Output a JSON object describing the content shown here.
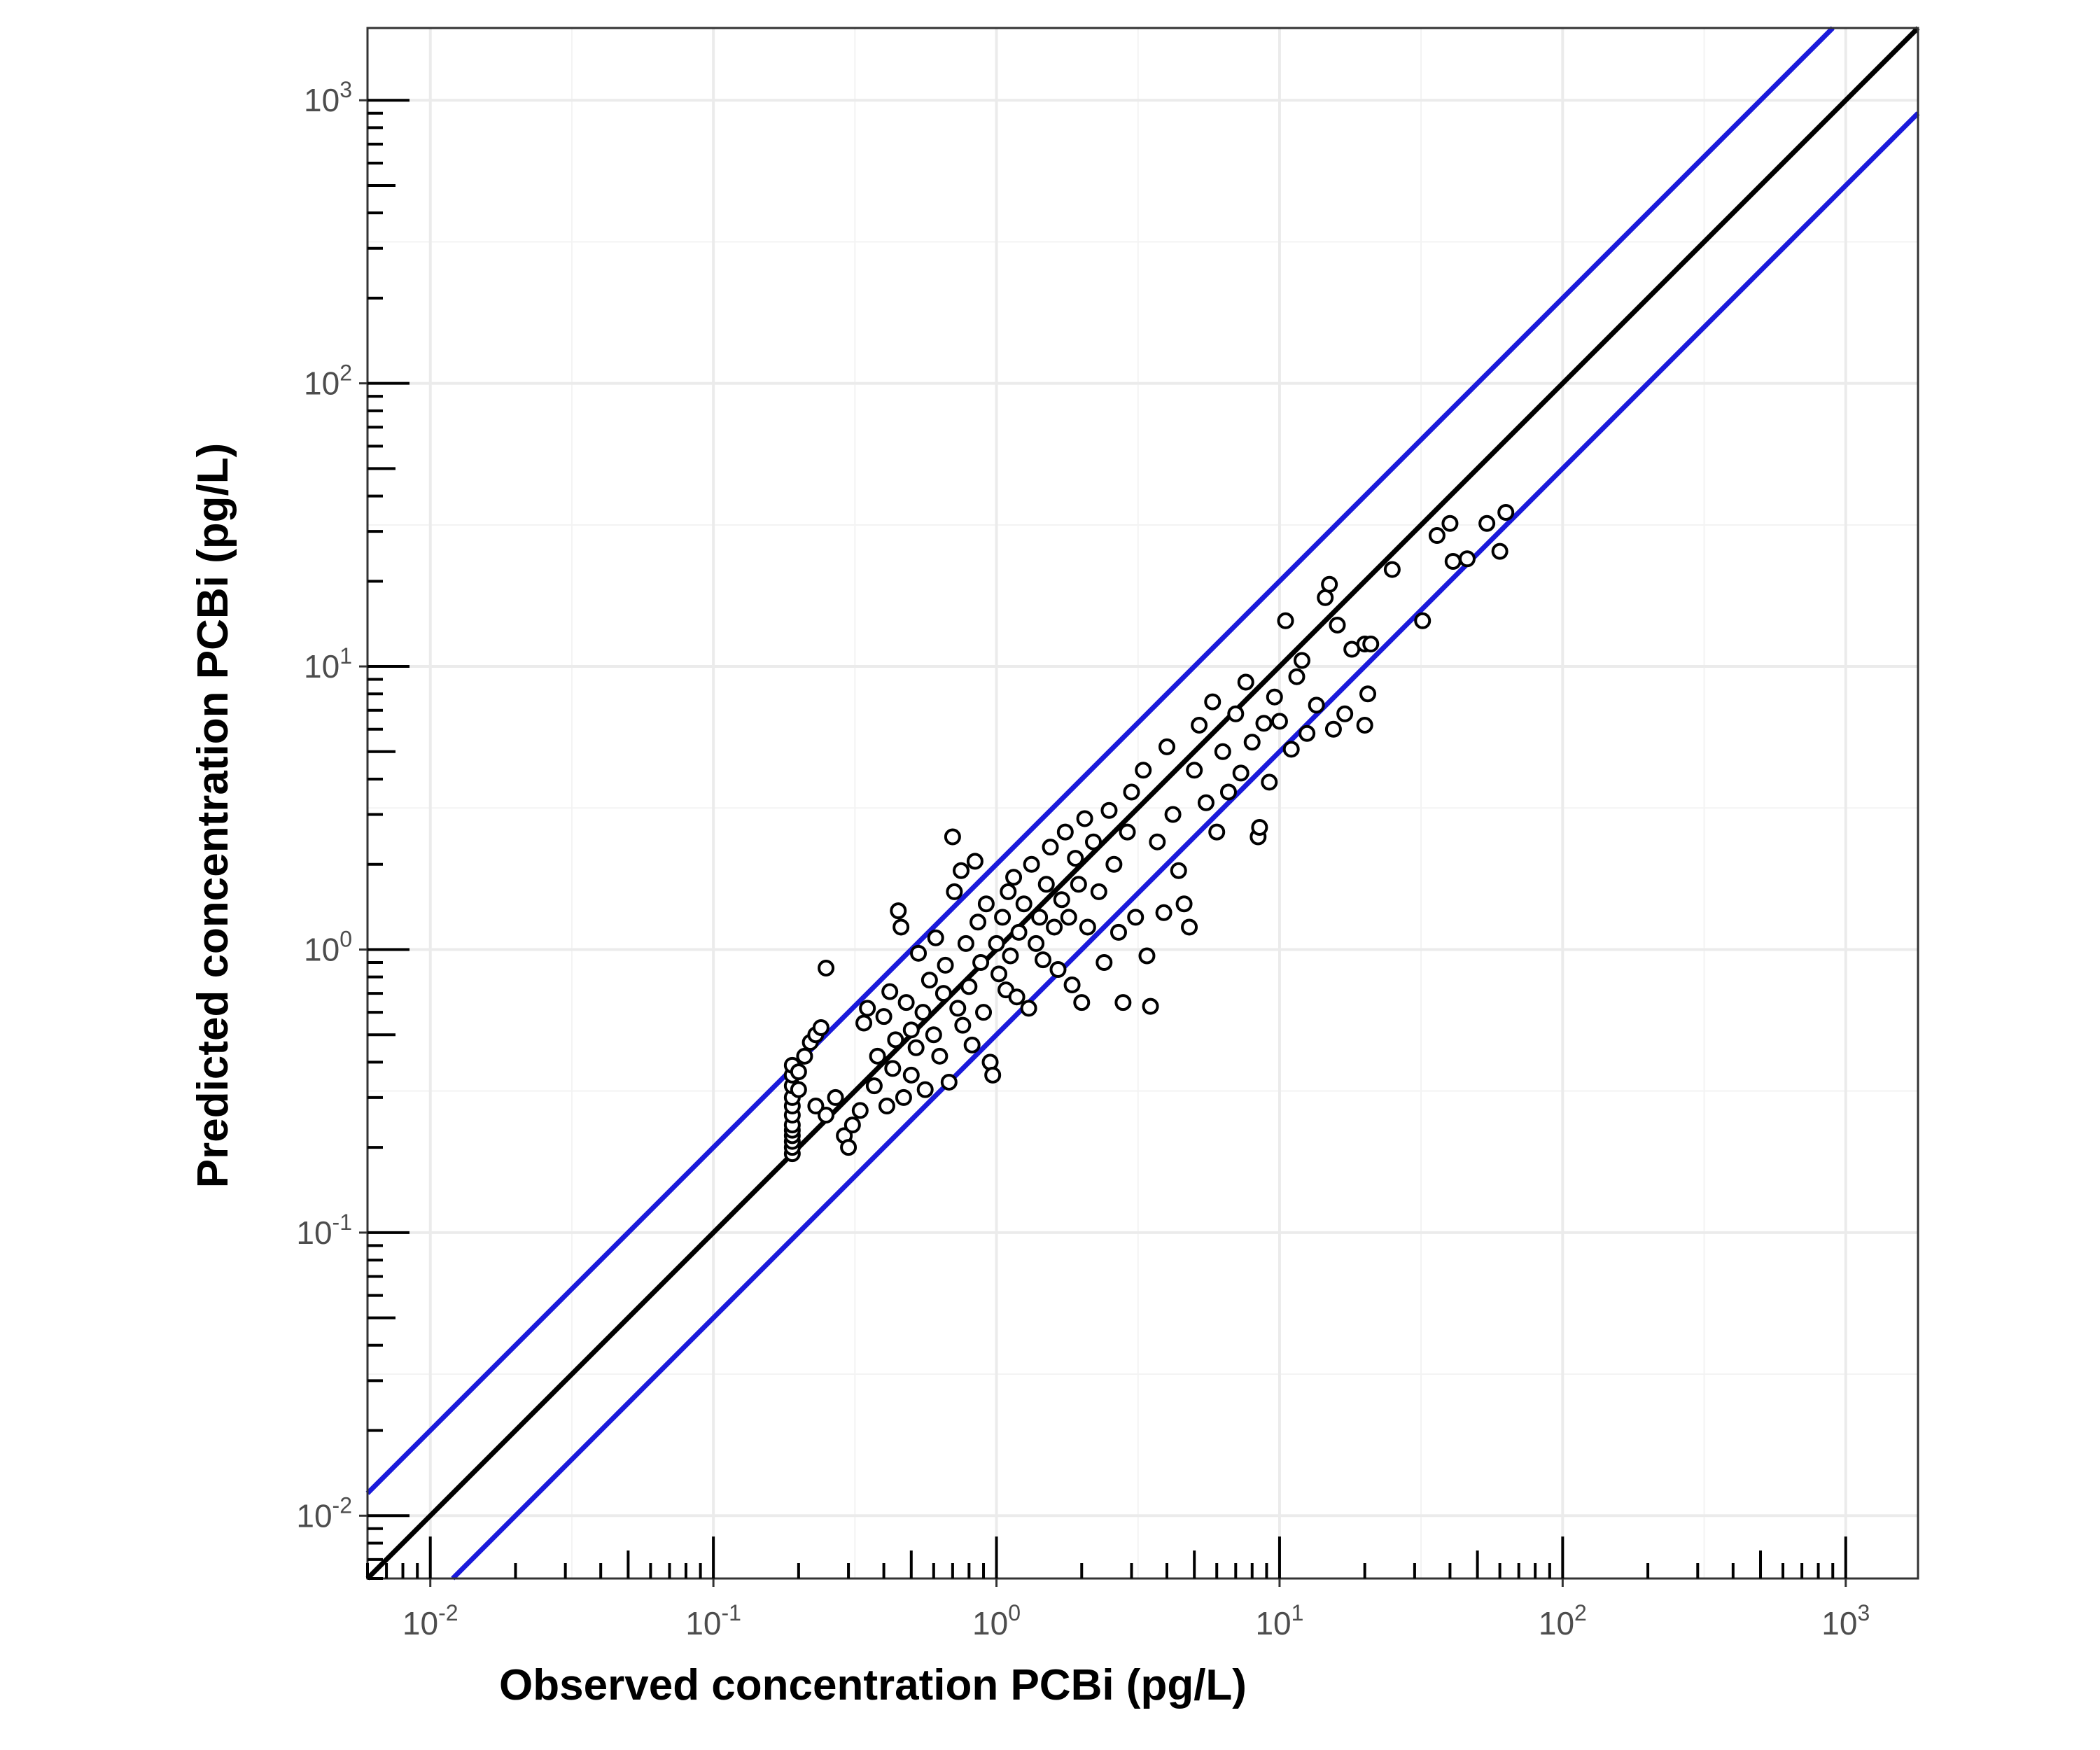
{
  "chart_data": {
    "type": "scatter",
    "title": "",
    "xlabel": "Observed concentration PCBi (pg/L)",
    "ylabel": "Predicted concentration PCBi (pg/L)",
    "xscale": "log10",
    "yscale": "log10",
    "xlim": [
      0.006,
      1800
    ],
    "ylim": [
      0.006,
      1800
    ],
    "x_ticks": [
      0.01,
      0.1,
      1,
      10,
      100,
      1000
    ],
    "y_ticks": [
      0.01,
      0.1,
      1,
      10,
      100,
      1000
    ],
    "x_tick_labels": [
      {
        "base": "10",
        "exp": "-2"
      },
      {
        "base": "10",
        "exp": "-1"
      },
      {
        "base": "10",
        "exp": "0"
      },
      {
        "base": "10",
        "exp": "1"
      },
      {
        "base": "10",
        "exp": "2"
      },
      {
        "base": "10",
        "exp": "3"
      }
    ],
    "y_tick_labels": [
      {
        "base": "10",
        "exp": "-2"
      },
      {
        "base": "10",
        "exp": "-1"
      },
      {
        "base": "10",
        "exp": "0"
      },
      {
        "base": "10",
        "exp": "1"
      },
      {
        "base": "10",
        "exp": "2"
      },
      {
        "base": "10",
        "exp": "3"
      }
    ],
    "grid": true,
    "legend": "none",
    "lines": [
      {
        "kind": "reference",
        "factor": 1,
        "color": "#000000"
      },
      {
        "kind": "reference",
        "factor": 2,
        "color": "#1a1adb"
      },
      {
        "kind": "reference",
        "factor": 0.5,
        "color": "#1a1adb"
      }
    ],
    "point_style": {
      "marker": "open-circle",
      "edge_color": "#000000",
      "fill_color": "#ffffff"
    },
    "points": [
      [
        0.19,
        0.19
      ],
      [
        0.19,
        0.2
      ],
      [
        0.19,
        0.21
      ],
      [
        0.19,
        0.22
      ],
      [
        0.19,
        0.23
      ],
      [
        0.19,
        0.24
      ],
      [
        0.19,
        0.26
      ],
      [
        0.19,
        0.28
      ],
      [
        0.19,
        0.3
      ],
      [
        0.19,
        0.33
      ],
      [
        0.19,
        0.36
      ],
      [
        0.19,
        0.39
      ],
      [
        0.2,
        0.37
      ],
      [
        0.2,
        0.32
      ],
      [
        0.21,
        0.42
      ],
      [
        0.22,
        0.47
      ],
      [
        0.23,
        0.5
      ],
      [
        0.24,
        0.53
      ],
      [
        0.25,
        0.86
      ],
      [
        0.23,
        0.28
      ],
      [
        0.25,
        0.26
      ],
      [
        0.27,
        0.3
      ],
      [
        0.29,
        0.22
      ],
      [
        0.3,
        0.2
      ],
      [
        0.31,
        0.24
      ],
      [
        0.33,
        0.27
      ],
      [
        0.34,
        0.55
      ],
      [
        0.35,
        0.62
      ],
      [
        0.37,
        0.33
      ],
      [
        0.38,
        0.42
      ],
      [
        0.4,
        0.58
      ],
      [
        0.41,
        0.28
      ],
      [
        0.42,
        0.71
      ],
      [
        0.43,
        0.38
      ],
      [
        0.44,
        0.48
      ],
      [
        0.45,
        1.37
      ],
      [
        0.46,
        1.2
      ],
      [
        0.47,
        0.3
      ],
      [
        0.48,
        0.65
      ],
      [
        0.5,
        0.52
      ],
      [
        0.5,
        0.36
      ],
      [
        0.52,
        0.45
      ],
      [
        0.53,
        0.97
      ],
      [
        0.55,
        0.6
      ],
      [
        0.56,
        0.32
      ],
      [
        0.58,
        0.78
      ],
      [
        0.6,
        0.5
      ],
      [
        0.61,
        1.1
      ],
      [
        0.63,
        0.42
      ],
      [
        0.65,
        0.7
      ],
      [
        0.66,
        0.88
      ],
      [
        0.68,
        0.34
      ],
      [
        0.7,
        2.5
      ],
      [
        0.71,
        1.6
      ],
      [
        0.73,
        0.62
      ],
      [
        0.75,
        1.9
      ],
      [
        0.76,
        0.54
      ],
      [
        0.78,
        1.05
      ],
      [
        0.8,
        0.74
      ],
      [
        0.82,
        0.46
      ],
      [
        0.84,
        2.05
      ],
      [
        0.86,
        1.25
      ],
      [
        0.88,
        0.9
      ],
      [
        0.9,
        0.6
      ],
      [
        0.92,
        1.45
      ],
      [
        0.95,
        0.4
      ],
      [
        0.97,
        0.36
      ],
      [
        1.0,
        1.05
      ],
      [
        1.02,
        0.82
      ],
      [
        1.05,
        1.3
      ],
      [
        1.08,
        0.72
      ],
      [
        1.1,
        1.6
      ],
      [
        1.12,
        0.95
      ],
      [
        1.15,
        1.8
      ],
      [
        1.18,
        0.68
      ],
      [
        1.2,
        1.15
      ],
      [
        1.25,
        1.45
      ],
      [
        1.3,
        0.62
      ],
      [
        1.33,
        2.0
      ],
      [
        1.38,
        1.05
      ],
      [
        1.42,
        1.3
      ],
      [
        1.46,
        0.92
      ],
      [
        1.5,
        1.7
      ],
      [
        1.55,
        2.3
      ],
      [
        1.6,
        1.2
      ],
      [
        1.65,
        0.85
      ],
      [
        1.7,
        1.5
      ],
      [
        1.75,
        2.6
      ],
      [
        1.8,
        1.3
      ],
      [
        1.85,
        0.75
      ],
      [
        1.9,
        2.1
      ],
      [
        1.95,
        1.7
      ],
      [
        2.0,
        0.65
      ],
      [
        2.05,
        2.9
      ],
      [
        2.1,
        1.2
      ],
      [
        2.2,
        2.4
      ],
      [
        2.3,
        1.6
      ],
      [
        2.4,
        0.9
      ],
      [
        2.5,
        3.1
      ],
      [
        2.6,
        2.0
      ],
      [
        2.7,
        1.15
      ],
      [
        2.8,
        0.65
      ],
      [
        2.9,
        2.6
      ],
      [
        3.0,
        3.6
      ],
      [
        3.1,
        1.3
      ],
      [
        3.3,
        4.3
      ],
      [
        3.4,
        0.95
      ],
      [
        3.5,
        0.63
      ],
      [
        3.7,
        2.4
      ],
      [
        3.9,
        1.35
      ],
      [
        4.0,
        5.2
      ],
      [
        4.2,
        3.0
      ],
      [
        4.4,
        1.9
      ],
      [
        4.6,
        1.45
      ],
      [
        4.8,
        1.2
      ],
      [
        5.0,
        4.3
      ],
      [
        5.2,
        6.2
      ],
      [
        5.5,
        3.3
      ],
      [
        5.8,
        7.5
      ],
      [
        6.0,
        2.6
      ],
      [
        6.3,
        5.0
      ],
      [
        6.6,
        3.6
      ],
      [
        7.0,
        6.8
      ],
      [
        7.3,
        4.2
      ],
      [
        7.6,
        8.8
      ],
      [
        8.0,
        5.4
      ],
      [
        8.4,
        2.5
      ],
      [
        8.5,
        2.7
      ],
      [
        8.8,
        6.3
      ],
      [
        9.2,
        3.9
      ],
      [
        9.6,
        7.8
      ],
      [
        10.0,
        6.4
      ],
      [
        10.5,
        14.5
      ],
      [
        11.0,
        5.1
      ],
      [
        11.5,
        9.2
      ],
      [
        12.0,
        10.5
      ],
      [
        12.5,
        5.8
      ],
      [
        13.5,
        7.3
      ],
      [
        14.5,
        17.5
      ],
      [
        15.0,
        19.5
      ],
      [
        15.5,
        6.0
      ],
      [
        16.0,
        14.0
      ],
      [
        17.0,
        6.8
      ],
      [
        18.0,
        11.5
      ],
      [
        20.0,
        12.0
      ],
      [
        20.5,
        8.0
      ],
      [
        20.0,
        6.2
      ],
      [
        21.0,
        12.0
      ],
      [
        25.0,
        22.0
      ],
      [
        32.0,
        14.5
      ],
      [
        36.0,
        29.0
      ],
      [
        40.0,
        32.0
      ],
      [
        41.0,
        23.5
      ],
      [
        46.0,
        24.0
      ],
      [
        54.0,
        32.0
      ],
      [
        60.0,
        25.5
      ],
      [
        63.0,
        35.0
      ]
    ]
  }
}
